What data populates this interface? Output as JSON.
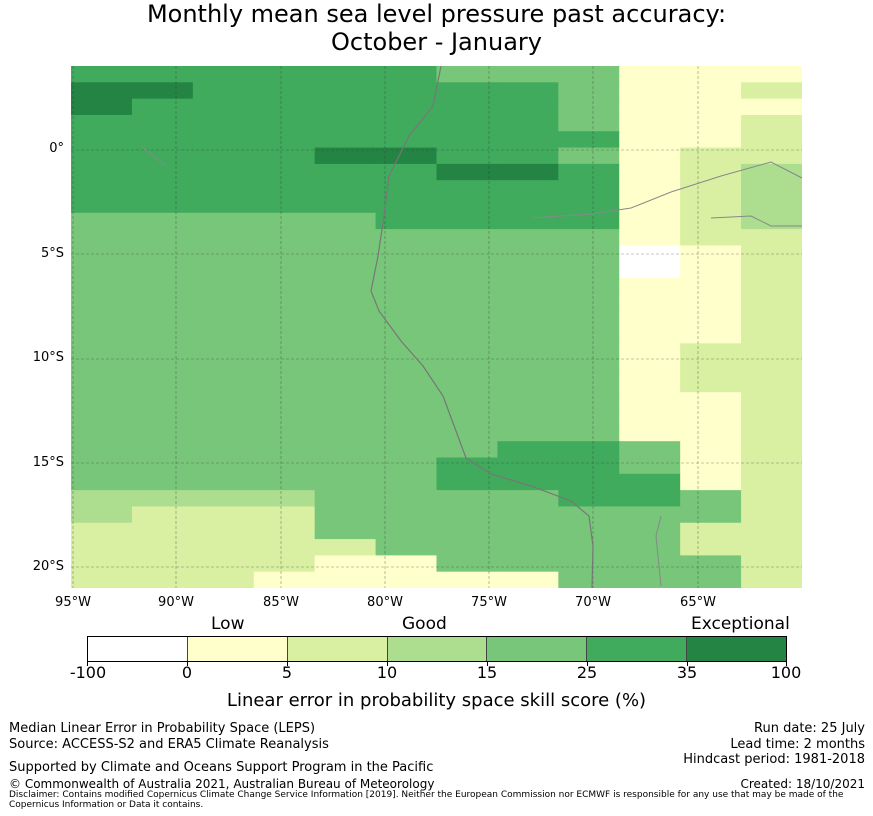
{
  "title": {
    "line1": "Monthly mean sea level pressure past accuracy:",
    "line2": "October - January"
  },
  "map": {
    "y_ticks": [
      "0°",
      "5°S",
      "10°S",
      "15°S",
      "20°S"
    ],
    "x_ticks": [
      "95°W",
      "90°W",
      "85°W",
      "80°W",
      "75°W",
      "70°W",
      "65°W"
    ],
    "region": "Pacific coast of South America, approx. 95°W-61°W, 4°N-21°S",
    "skill_colors": {
      "0": "#ffffff",
      "1": "#ffffcc",
      "2": "#d9f0a3",
      "3": "#addd8e",
      "4": "#78c679",
      "5": "#41ab5d",
      "6": "#238443"
    },
    "skill_grid": [
      "555555444111",
      "665555554112",
      "655555554111",
      "555555554112",
      "555555555112",
      "555566554122",
      "555555665123",
      "555555555123",
      "555555555123",
      "444445555123",
      "444444444122",
      "444444444012",
      "444444444012",
      "444444444112",
      "444444444112",
      "444444444112",
      "444444444112",
      "444444444122",
      "444444444122",
      "444444444122",
      "444444444112",
      "444444444112",
      "444444444112",
      "444444455412",
      "444444555412",
      "444444555512",
      "333344445542",
      "322244444442",
      "222244444422",
      "222224444422",
      "222211444442",
      "222111114442"
    ]
  },
  "legend": {
    "categories": [
      "Low",
      "Good",
      "Exceptional"
    ],
    "colors": [
      "#ffffff",
      "#ffffcc",
      "#d9f0a3",
      "#addd8e",
      "#78c679",
      "#41ab5d",
      "#238443"
    ],
    "ticks": [
      "-100",
      "0",
      "5",
      "10",
      "15",
      "25",
      "35",
      "100"
    ],
    "label": "Linear error in probability space skill score (%)"
  },
  "footer": {
    "left_line1": "Median Linear Error in Probability Space (LEPS)",
    "left_line2": "Source: ACCESS-S2 and ERA5 Climate Reanalysis",
    "left_line3": "Supported by Climate and Oceans Support Program in the Pacific",
    "left_line4": "© Commonwealth of Australia 2021, Australian Bureau of Meteorology",
    "right_line1": "Run date: 25 July",
    "right_line2": "Lead time: 2 months",
    "right_line3": "Hindcast period: 1981-2018",
    "right_line4": "Created: 18/10/2021",
    "disclaimer": "Disclaimer: Contains modified Copernicus Climate Change Service Information [2019]. Neither the European Commission nor ECMWF is responsible for any use that may be made of the Copernicus Information or Data it contains."
  }
}
